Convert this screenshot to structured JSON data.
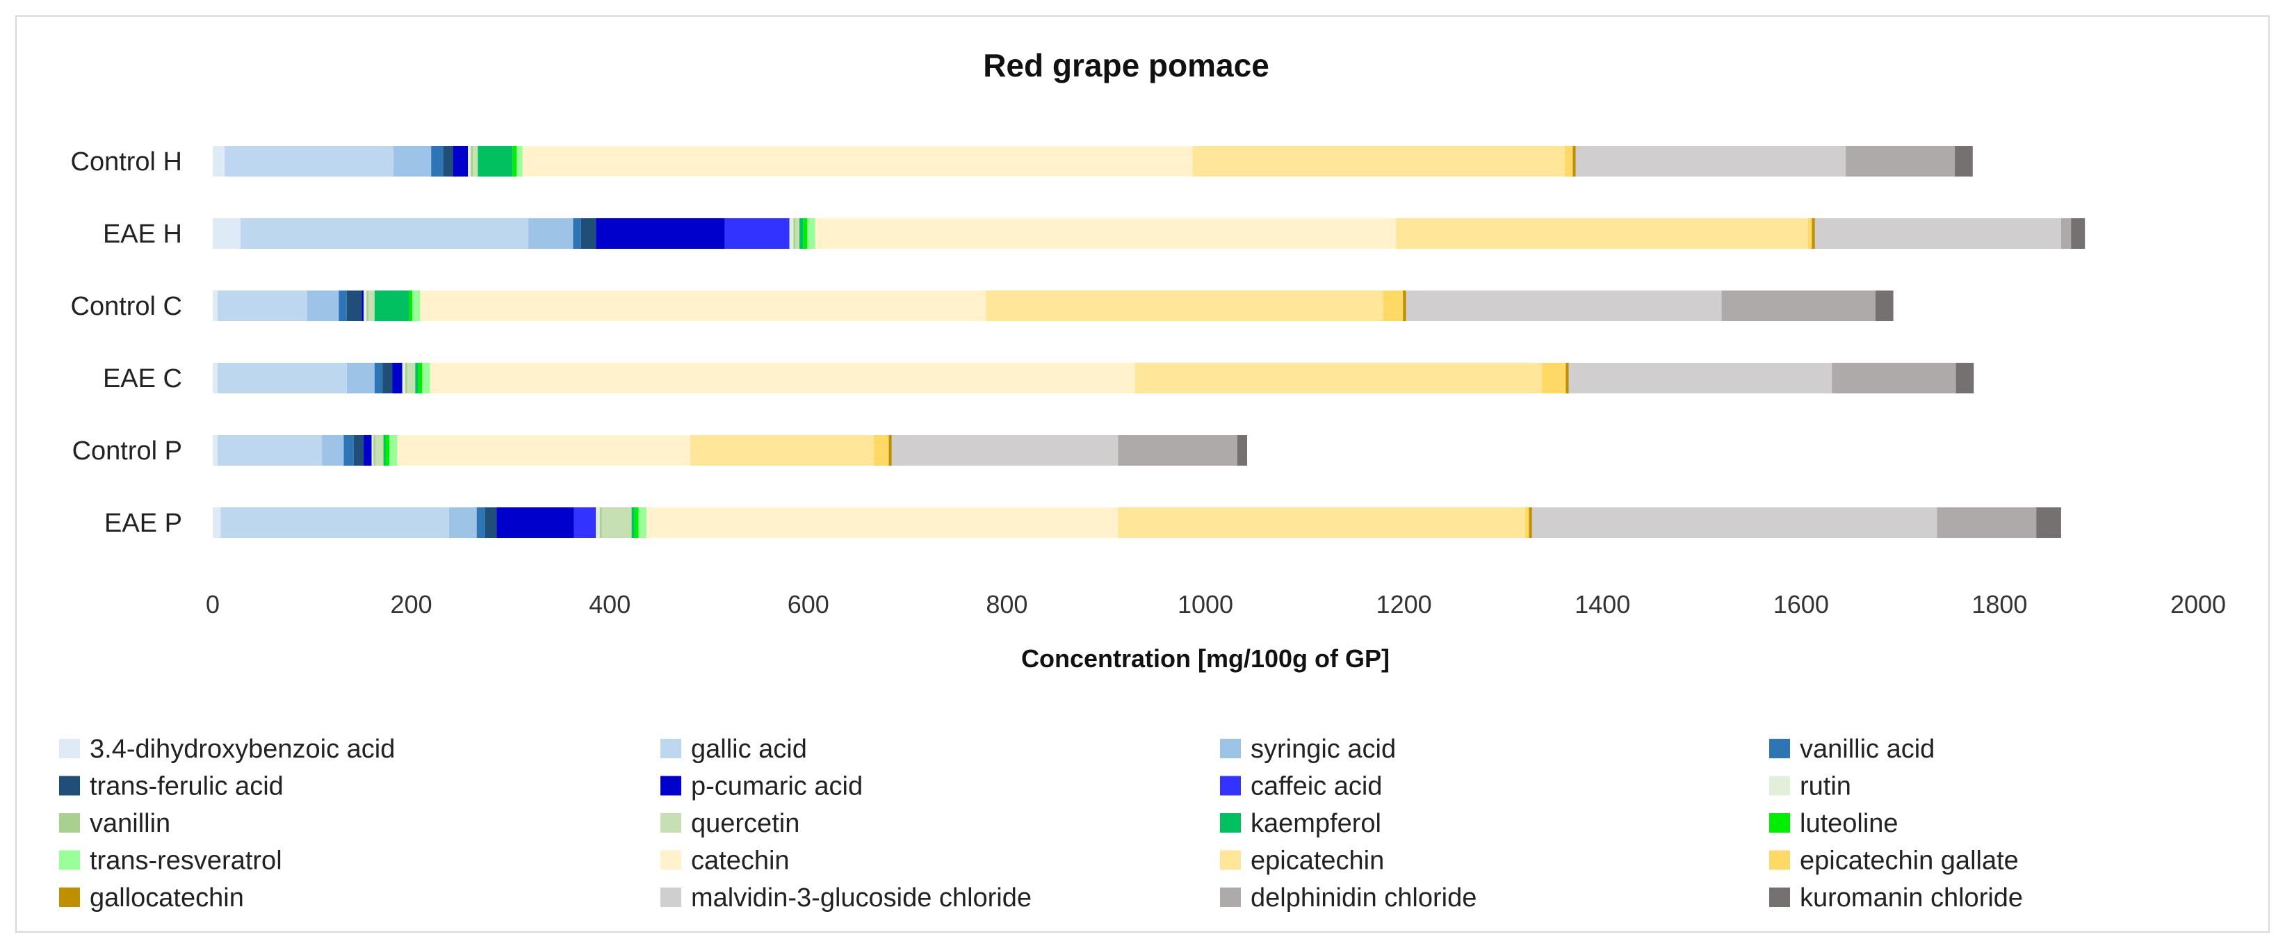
{
  "chart_data": {
    "type": "bar",
    "orientation": "horizontal",
    "stacked": true,
    "title": "Red grape pomace",
    "xlabel": "Concentration  [mg/100g of GP]",
    "ylabel": "",
    "xlim": [
      0,
      2000
    ],
    "x_ticks": [
      "0",
      "200",
      "400",
      "600",
      "800",
      "1000",
      "1200",
      "1400",
      "1600",
      "1800",
      "2000"
    ],
    "categories": [
      "Control H",
      "EAE H",
      "Control C",
      "EAE C",
      "Control P",
      "EAE P"
    ],
    "legend_position": "bottom",
    "grid": false,
    "series": [
      {
        "name": "3.4-dihydroxybenzoic acid",
        "color": "#deebf7",
        "values": [
          12,
          28,
          5,
          5,
          5,
          8
        ]
      },
      {
        "name": "gallic acid",
        "color": "#bdd7ee",
        "values": [
          170,
          290,
          90,
          130,
          105,
          230
        ]
      },
      {
        "name": "syringic acid",
        "color": "#9dc3e6",
        "values": [
          38,
          45,
          32,
          28,
          22,
          28
        ]
      },
      {
        "name": "vanillic acid",
        "color": "#2e75b6",
        "values": [
          12,
          8,
          8,
          8,
          10,
          8
        ]
      },
      {
        "name": "trans-ferulic acid",
        "color": "#1f4e79",
        "values": [
          10,
          15,
          15,
          10,
          10,
          12
        ]
      },
      {
        "name": "p-cumaric acid",
        "color": "#0000cc",
        "values": [
          15,
          130,
          2,
          10,
          8,
          78
        ]
      },
      {
        "name": "caffeic acid",
        "color": "#3333ff",
        "values": [
          0,
          65,
          0,
          0,
          0,
          22
        ]
      },
      {
        "name": "rutin",
        "color": "#e2efda",
        "values": [
          3,
          4,
          3,
          3,
          2,
          4
        ]
      },
      {
        "name": "vanillin",
        "color": "#a9d08e",
        "values": [
          2,
          2,
          2,
          2,
          2,
          2
        ]
      },
      {
        "name": "quercetin",
        "color": "#c6e0b4",
        "values": [
          5,
          4,
          6,
          8,
          8,
          30
        ]
      },
      {
        "name": "kaempferol",
        "color": "#00c060",
        "values": [
          35,
          4,
          35,
          3,
          2,
          3
        ]
      },
      {
        "name": "luteoline",
        "color": "#00ee00",
        "values": [
          4,
          4,
          3,
          4,
          4,
          4
        ]
      },
      {
        "name": "trans-resveratrol",
        "color": "#99ff99",
        "values": [
          6,
          8,
          8,
          8,
          8,
          8
        ]
      },
      {
        "name": "catechin",
        "color": "#fff2cc",
        "values": [
          675,
          585,
          570,
          710,
          295,
          475
        ]
      },
      {
        "name": "epicatechin",
        "color": "#ffe699",
        "values": [
          375,
          415,
          400,
          410,
          185,
          410
        ]
      },
      {
        "name": "epicatechin gallate",
        "color": "#ffd966",
        "values": [
          8,
          4,
          20,
          24,
          15,
          4
        ]
      },
      {
        "name": "gallocatechin",
        "color": "#bf8f00",
        "values": [
          3,
          3,
          3,
          3,
          3,
          3
        ]
      },
      {
        "name": "malvidin-3-glucoside chloride",
        "color": "#d0cece",
        "values": [
          272,
          248,
          318,
          265,
          228,
          408
        ]
      },
      {
        "name": "delphinidin chloride",
        "color": "#aeaaaa",
        "values": [
          110,
          10,
          155,
          125,
          120,
          100
        ]
      },
      {
        "name": "kuromanin chloride",
        "color": "#767171",
        "values": [
          18,
          14,
          18,
          18,
          10,
          25
        ]
      }
    ]
  }
}
